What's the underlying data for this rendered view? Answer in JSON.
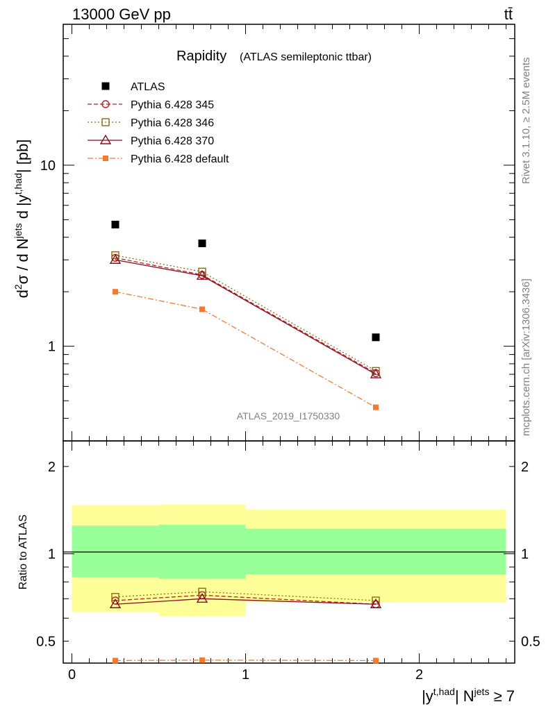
{
  "header": {
    "energy": "13000 GeV pp",
    "process": "tt̄",
    "side_label": "Rivet 3.1.10, ≥ 2.5M events",
    "side_url": "mcplots.cern.ch [arXiv:1306.3436]",
    "analysis_id": "ATLAS_2019_I1750330"
  },
  "colors": {
    "data": "#000000",
    "p345": "#b22222",
    "p346": "#8b6914",
    "p370": "#8b0a1e",
    "pdefault": "#f5782d",
    "band_yellow": "#ffff99",
    "band_green": "#99ff99"
  },
  "chart_data": [
    {
      "type": "scatter",
      "title": "Rapidity",
      "subtitle": "(ATLAS semileptonic ttbar)",
      "ylabel": "d²σ / d N^jets d |y^t,had| [pb]",
      "yscale": "log",
      "ylim": [
        0.3,
        60
      ],
      "xlim": [
        -0.05,
        2.55
      ],
      "yticks": [
        {
          "value": 1,
          "label": "1"
        },
        {
          "value": 10,
          "label": "10"
        }
      ],
      "x": [
        0.25,
        0.75,
        1.75
      ],
      "xerr": [
        [
          0,
          0.5
        ],
        [
          0.5,
          1.0
        ],
        [
          1.0,
          2.5
        ]
      ],
      "series": [
        {
          "name": "ATLAS",
          "key": "data",
          "marker": "square",
          "values": [
            4.7,
            3.7,
            1.12
          ]
        },
        {
          "name": "Pythia 6.428 345",
          "key": "p345",
          "marker": "circle",
          "dash": "6,3",
          "values": [
            3.08,
            2.48,
            0.71
          ]
        },
        {
          "name": "Pythia 6.428 346",
          "key": "p346",
          "marker": "open-square",
          "dash": "2,3",
          "values": [
            3.18,
            2.58,
            0.73
          ]
        },
        {
          "name": "Pythia 6.428 370",
          "key": "p370",
          "marker": "triangle",
          "dash": "",
          "values": [
            3.0,
            2.45,
            0.7
          ]
        },
        {
          "name": "Pythia 6.428 default",
          "key": "pdefault",
          "marker": "filled-square",
          "dash": "8,3,2,3",
          "values": [
            2.0,
            1.6,
            0.46
          ]
        }
      ]
    },
    {
      "type": "line",
      "ylabel": "Ratio to ATLAS",
      "yscale": "log",
      "ylim": [
        0.42,
        2.45
      ],
      "xlim": [
        -0.05,
        2.55
      ],
      "xlabel": "|y^t,had| N^jets ≥ 7",
      "xticks": [
        {
          "value": 0,
          "label": "0"
        },
        {
          "value": 1,
          "label": "1"
        },
        {
          "value": 2,
          "label": "2"
        }
      ],
      "yticks": [
        {
          "value": 0.5,
          "label": "0.5"
        },
        {
          "value": 1,
          "label": "1"
        },
        {
          "value": 2,
          "label": "2"
        }
      ],
      "bands": [
        {
          "x0": 0,
          "x1": 0.5,
          "y_lo": 0.63,
          "y_hi": 1.47,
          "g_lo": 0.83,
          "g_hi": 1.25
        },
        {
          "x0": 0.5,
          "x1": 1.0,
          "y_lo": 0.61,
          "y_hi": 1.48,
          "g_lo": 0.82,
          "g_hi": 1.26
        },
        {
          "x0": 1.0,
          "x1": 2.5,
          "y_lo": 0.68,
          "y_hi": 1.42,
          "g_lo": 0.85,
          "g_hi": 1.22
        }
      ],
      "x": [
        0.25,
        0.75,
        1.75
      ],
      "series": [
        {
          "name": "Pythia 6.428 345",
          "key": "p345",
          "marker": "circle",
          "dash": "6,3",
          "values": [
            0.69,
            0.72,
            0.67
          ]
        },
        {
          "name": "Pythia 6.428 346",
          "key": "p346",
          "marker": "open-square",
          "dash": "2,3",
          "values": [
            0.71,
            0.74,
            0.69
          ]
        },
        {
          "name": "Pythia 6.428 370",
          "key": "p370",
          "marker": "triangle",
          "dash": "",
          "values": [
            0.67,
            0.7,
            0.67
          ]
        },
        {
          "name": "Pythia 6.428 default",
          "key": "pdefault",
          "marker": "filled-square",
          "dash": "8,3,2,3",
          "values": [
            0.42,
            0.43,
            0.41
          ]
        }
      ]
    }
  ]
}
